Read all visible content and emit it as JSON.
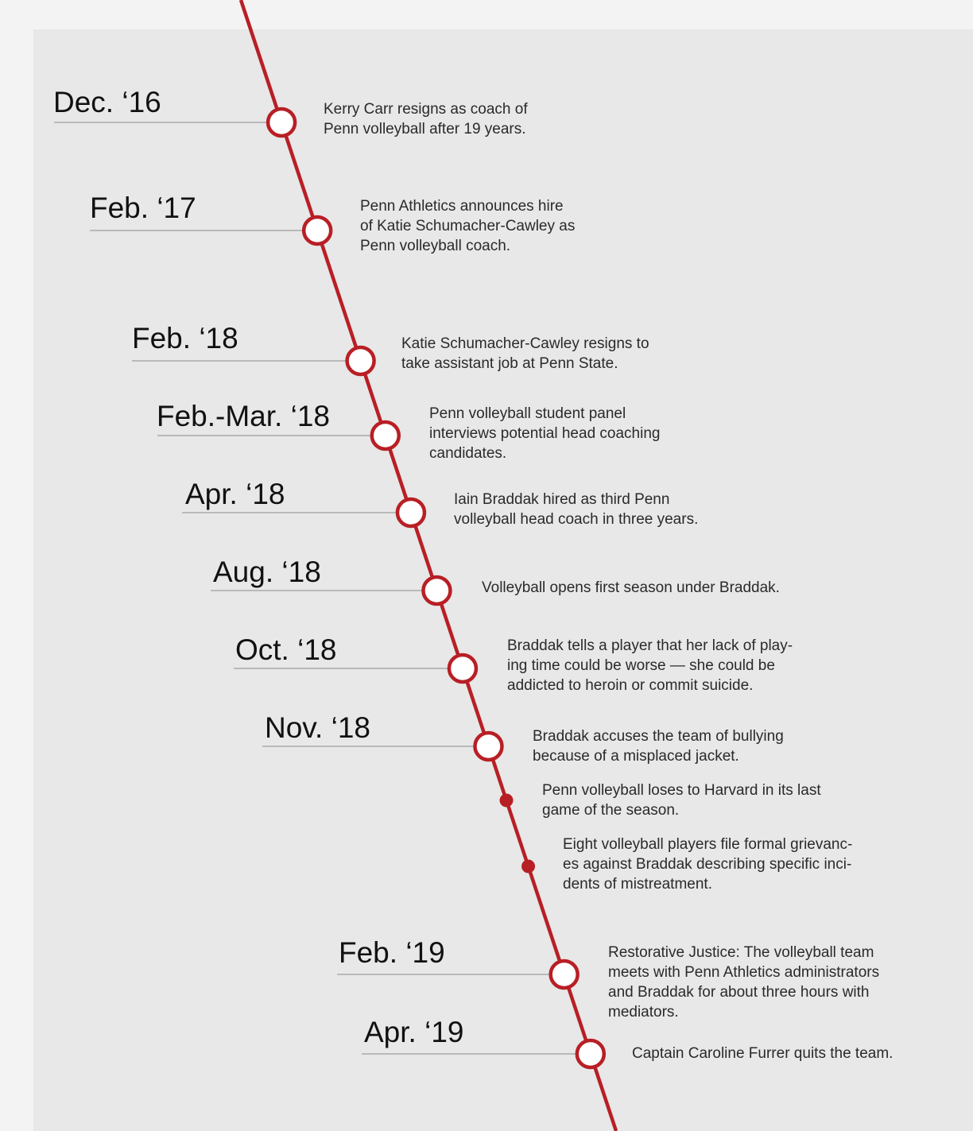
{
  "colors": {
    "line": "#b81f25",
    "page_background": "#f2f3f2",
    "panel_background": "#e7e8e7",
    "leader": "#a9a9a9"
  },
  "events": [
    {
      "date": "Dec. ‘16",
      "marker": "ring",
      "text": "Kerry Carr resigns as coach of\nPenn volleyball after 19 years."
    },
    {
      "date": "Feb. ‘17",
      "marker": "ring",
      "text": "Penn Athletics announces hire\nof Katie Schumacher-Cawley as\nPenn volleyball coach."
    },
    {
      "date": "Feb. ‘18",
      "marker": "ring",
      "text": "Katie Schumacher-Cawley resigns to\ntake assistant job at Penn State."
    },
    {
      "date": "Feb.-Mar. ‘18",
      "marker": "ring",
      "text": "Penn volleyball student panel\ninterviews potential head coaching\ncandidates."
    },
    {
      "date": "Apr. ‘18",
      "marker": "ring",
      "text": "Iain Braddak hired as third Penn\nvolleyball head coach in three years."
    },
    {
      "date": "Aug. ‘18",
      "marker": "ring",
      "text": "Volleyball opens first season under Braddak."
    },
    {
      "date": "Oct. ‘18",
      "marker": "ring",
      "text": "Braddak tells a player that her lack of play-\ning time could be worse — she could be\naddicted to heroin or commit suicide."
    },
    {
      "date": "Nov. ‘18",
      "marker": "ring",
      "text": "Braddak accuses the team of bullying\nbecause of a misplaced jacket."
    },
    {
      "date": "",
      "marker": "dot",
      "text": "Penn volleyball loses to Harvard in its last\ngame of the season."
    },
    {
      "date": "",
      "marker": "dot",
      "text": "Eight volleyball players file formal grievanc-\nes against Braddak describing specific inci-\ndents of mistreatment."
    },
    {
      "date": "Feb. ‘19",
      "marker": "ring",
      "text": "Restorative Justice: The volleyball team\nmeets with Penn Athletics administrators\nand Braddak for about three hours with\nmediators."
    },
    {
      "date": "Apr. ‘19",
      "marker": "ring",
      "text": "Captain Caroline Furrer quits the team."
    }
  ]
}
